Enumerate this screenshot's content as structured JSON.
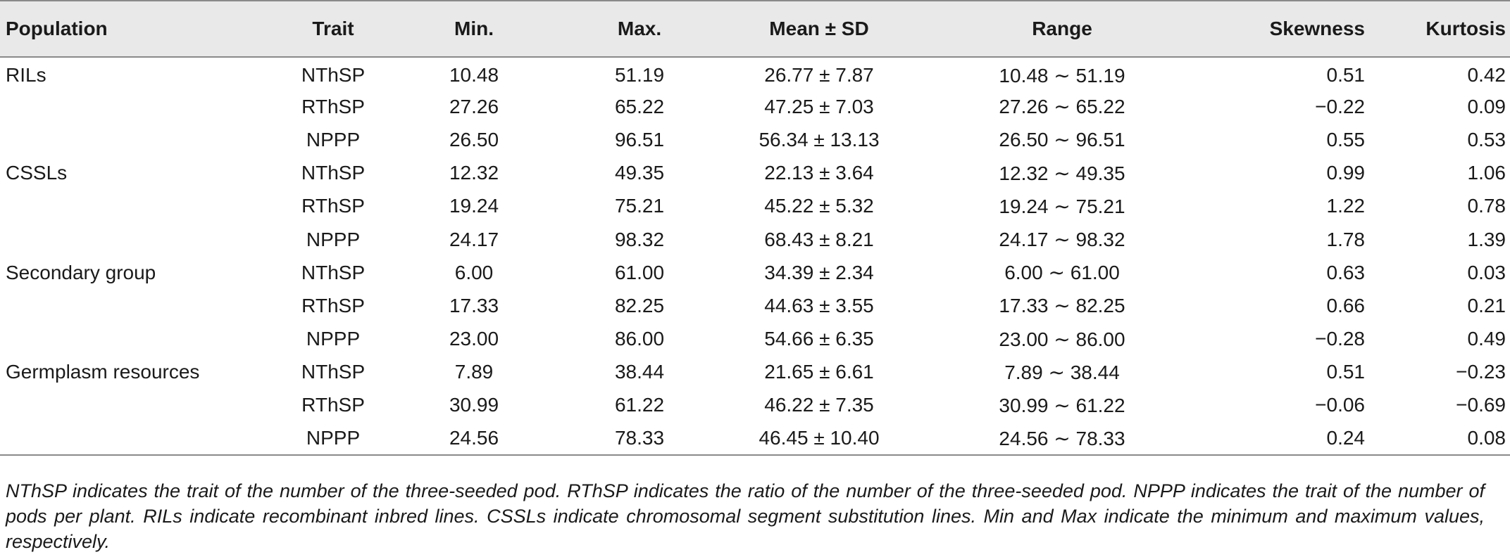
{
  "table": {
    "headers": {
      "population": "Population",
      "trait": "Trait",
      "min": "Min.",
      "max": "Max.",
      "mean_sd": "Mean ± SD",
      "range": "Range",
      "skewness": "Skewness",
      "kurtosis": "Kurtosis"
    },
    "rows": [
      {
        "population": "RILs",
        "trait": "NThSP",
        "min": "10.48",
        "max": "51.19",
        "mean_sd": "26.77 ± 7.87",
        "range": "10.48 ∼ 51.19",
        "skewness": "0.51",
        "kurtosis": "0.42"
      },
      {
        "population": "",
        "trait": "RThSP",
        "min": "27.26",
        "max": "65.22",
        "mean_sd": "47.25 ± 7.03",
        "range": "27.26 ∼ 65.22",
        "skewness": "−0.22",
        "kurtosis": "0.09"
      },
      {
        "population": "",
        "trait": "NPPP",
        "min": "26.50",
        "max": "96.51",
        "mean_sd": "56.34 ± 13.13",
        "range": "26.50 ∼ 96.51",
        "skewness": "0.55",
        "kurtosis": "0.53"
      },
      {
        "population": "CSSLs",
        "trait": "NThSP",
        "min": "12.32",
        "max": "49.35",
        "mean_sd": "22.13 ± 3.64",
        "range": "12.32 ∼ 49.35",
        "skewness": "0.99",
        "kurtosis": "1.06"
      },
      {
        "population": "",
        "trait": "RThSP",
        "min": "19.24",
        "max": "75.21",
        "mean_sd": "45.22 ± 5.32",
        "range": "19.24 ∼ 75.21",
        "skewness": "1.22",
        "kurtosis": "0.78"
      },
      {
        "population": "",
        "trait": "NPPP",
        "min": "24.17",
        "max": "98.32",
        "mean_sd": "68.43 ± 8.21",
        "range": "24.17 ∼ 98.32",
        "skewness": "1.78",
        "kurtosis": "1.39"
      },
      {
        "population": "Secondary group",
        "trait": "NThSP",
        "min": "6.00",
        "max": "61.00",
        "mean_sd": "34.39 ± 2.34",
        "range": "6.00 ∼ 61.00",
        "skewness": "0.63",
        "kurtosis": "0.03"
      },
      {
        "population": "",
        "trait": "RThSP",
        "min": "17.33",
        "max": "82.25",
        "mean_sd": "44.63 ± 3.55",
        "range": "17.33 ∼ 82.25",
        "skewness": "0.66",
        "kurtosis": "0.21"
      },
      {
        "population": "",
        "trait": "NPPP",
        "min": "23.00",
        "max": "86.00",
        "mean_sd": "54.66 ± 6.35",
        "range": "23.00 ∼ 86.00",
        "skewness": "−0.28",
        "kurtosis": "0.49"
      },
      {
        "population": "Germplasm resources",
        "trait": "NThSP",
        "min": "7.89",
        "max": "38.44",
        "mean_sd": "21.65 ± 6.61",
        "range": "7.89 ∼ 38.44",
        "skewness": "0.51",
        "kurtosis": "−0.23"
      },
      {
        "population": "",
        "trait": "RThSP",
        "min": "30.99",
        "max": "61.22",
        "mean_sd": "46.22 ± 7.35",
        "range": "30.99 ∼ 61.22",
        "skewness": "−0.06",
        "kurtosis": "−0.69"
      },
      {
        "population": "",
        "trait": "NPPP",
        "min": "24.56",
        "max": "78.33",
        "mean_sd": "46.45 ± 10.40",
        "range": "24.56 ∼ 78.33",
        "skewness": "0.24",
        "kurtosis": "0.08"
      }
    ]
  },
  "footnote": "NThSP indicates the trait of the number of the three-seeded pod. RThSP indicates the ratio of the number of the three-seeded pod. NPPP indicates the trait of the number of pods per plant. RILs indicate recombinant inbred lines. CSSLs indicate chromosomal segment substitution lines. Min and Max indicate the minimum and maximum values, respectively.",
  "colors": {
    "header_background": "#e9e9e9",
    "rule_lines": "#8a8a8a",
    "text": "#1a1a1a"
  }
}
